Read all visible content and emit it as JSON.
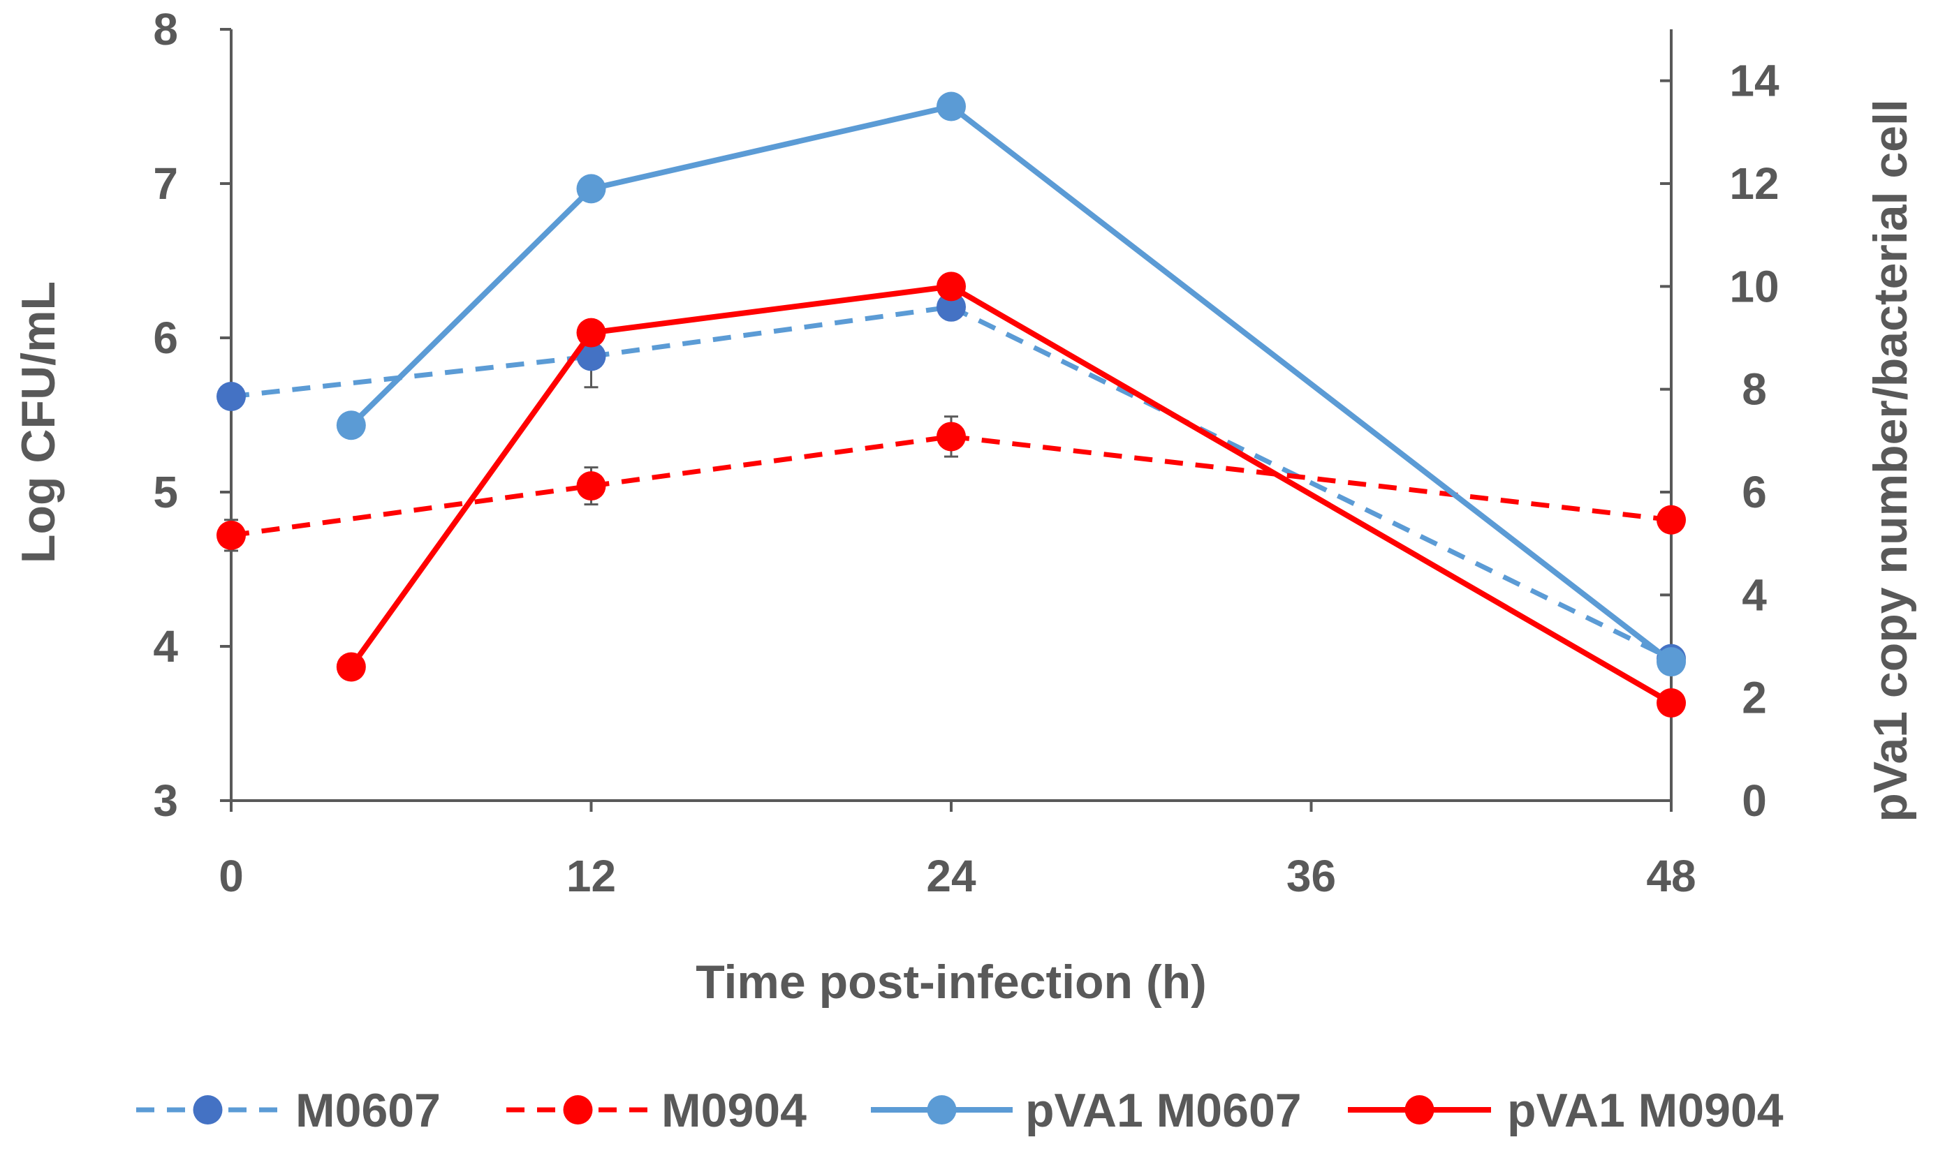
{
  "chart_data": {
    "type": "line",
    "title": "",
    "xlabel": "Time post-infection (h)",
    "ylabel": "Log CFU/mL",
    "y2label": "pVa1 copy number/bacterial cell",
    "xlim": [
      0,
      48
    ],
    "ylim": [
      3,
      8
    ],
    "y2lim": [
      0,
      15
    ],
    "xticks": [
      "0",
      "12",
      "24",
      "36",
      "48"
    ],
    "yticks": [
      "3",
      "4",
      "5",
      "6",
      "7",
      "8"
    ],
    "y2ticks": [
      "0",
      "2",
      "4",
      "6",
      "8",
      "10",
      "12",
      "14"
    ],
    "grid": false,
    "legend_position": "bottom",
    "series": [
      {
        "name": "M0607",
        "axis": "left",
        "color": "#5b9bd5",
        "marker_color": "#4472c4",
        "dashed": true,
        "x": [
          0,
          12,
          24,
          48
        ],
        "y": [
          5.62,
          5.88,
          6.2,
          3.92
        ],
        "err": [
          0,
          0.2,
          0.05,
          0.05
        ]
      },
      {
        "name": "M0904",
        "axis": "left",
        "color": "#ff0000",
        "marker_color": "#ff0000",
        "dashed": true,
        "x": [
          0,
          12,
          24,
          48
        ],
        "y": [
          4.72,
          5.04,
          5.36,
          4.82
        ],
        "err": [
          0.1,
          0.12,
          0.13,
          0.05
        ]
      },
      {
        "name": "pVA1 M0607",
        "axis": "right",
        "color": "#5b9bd5",
        "marker_color": "#5b9bd5",
        "dashed": false,
        "x": [
          4,
          12,
          24,
          48
        ],
        "y": [
          7.3,
          11.9,
          13.5,
          2.7
        ],
        "err": [
          0,
          0,
          0,
          0
        ]
      },
      {
        "name": "pVA1 M0904",
        "axis": "right",
        "color": "#ff0000",
        "marker_color": "#ff0000",
        "dashed": false,
        "x": [
          4,
          12,
          24,
          48
        ],
        "y": [
          2.6,
          9.1,
          10.0,
          1.9
        ],
        "err": [
          0,
          0,
          0,
          0
        ]
      }
    ]
  }
}
